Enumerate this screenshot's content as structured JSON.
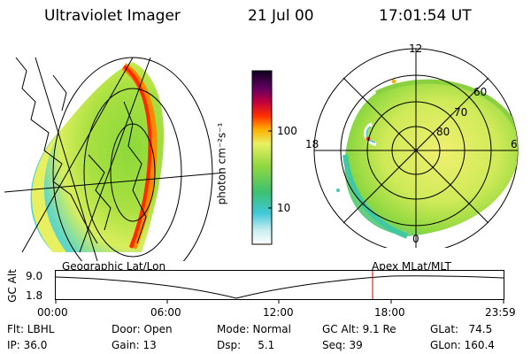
{
  "header": {
    "instrument": "Ultraviolet Imager",
    "date": "21 Jul 00",
    "time": "17:01:54 UT"
  },
  "panels": {
    "left_caption": "Geographic Lat/Lon",
    "right_caption": "Apex MLat/MLT"
  },
  "colorbar": {
    "unit_label": "photon cm⁻²s⁻¹",
    "ticks": [
      "100",
      "10"
    ]
  },
  "polar": {
    "mlt_labels": {
      "top": "12",
      "left": "18",
      "right": "6",
      "bottom": "0"
    },
    "lat_labels": [
      "60",
      "70",
      "80"
    ]
  },
  "timeline": {
    "y_axis_label": "GC Alt",
    "y_ticks": [
      "9.0",
      "1.8"
    ],
    "x_ticks": [
      "00:00",
      "06:00",
      "12:00",
      "18:00",
      "23:59"
    ],
    "marker_time": "17:01:54"
  },
  "status": {
    "filter": "Flt: LBHL",
    "ip": "IP: 36.0",
    "door": "Door: Open",
    "gain": "Gain: 13",
    "mode": "Mode: Normal",
    "dsp": "Dsp:     5.1",
    "gc_alt": "GC Alt: 9.1 Re",
    "seq": "Seq: 39",
    "glat": "GLat:   74.5",
    "glon": "GLon: 160.4"
  },
  "colors": {
    "marker": "#d00000",
    "accent_aurora": "#ff3000"
  }
}
